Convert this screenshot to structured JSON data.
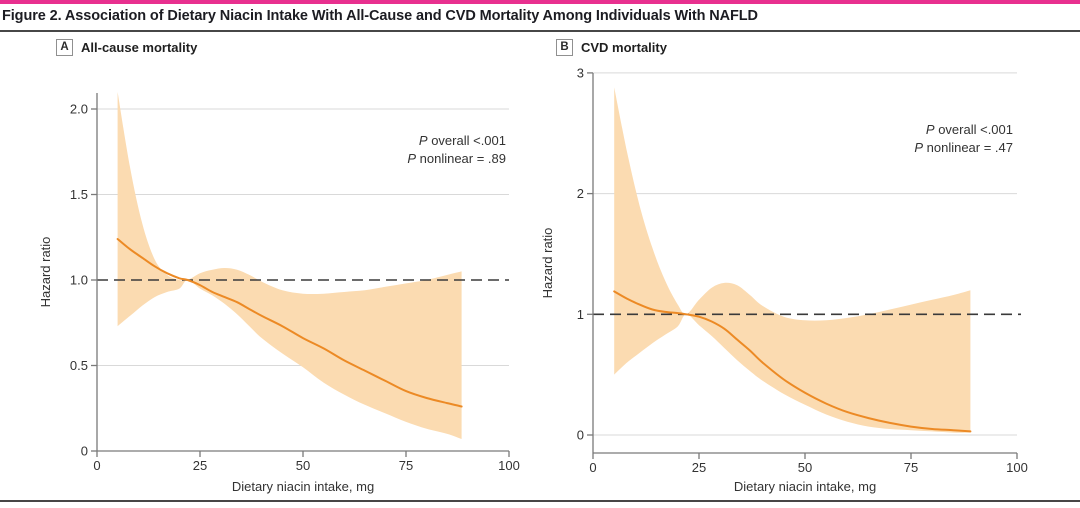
{
  "figure": {
    "title": "Figure 2. Association of Dietary Niacin Intake With All-Cause and CVD Mortality Among Individuals With NAFLD",
    "accent_color": "#E8308F"
  },
  "panels": [
    {
      "badge": "A",
      "label": "All-cause mortality"
    },
    {
      "badge": "B",
      "label": "CVD mortality"
    }
  ],
  "chart_data": [
    {
      "type": "line",
      "panel": "A",
      "title": "All-cause mortality",
      "xlabel": "Dietary niacin intake, mg",
      "ylabel": "Hazard ratio",
      "xlim": [
        0,
        100
      ],
      "ylim": [
        0,
        2.0
      ],
      "xticks": [
        0,
        25,
        50,
        75,
        100
      ],
      "yticks": [
        {
          "v": 0,
          "label": "0"
        },
        {
          "v": 0.5,
          "label": "0.5"
        },
        {
          "v": 1,
          "label": "1.0"
        },
        {
          "v": 1.5,
          "label": "1.5"
        },
        {
          "v": 2,
          "label": "2.0"
        }
      ],
      "gridlines": [
        0.5,
        1.5,
        2.0
      ],
      "reference_line": 1.0,
      "annotations": [
        {
          "italic": "P",
          "text": " overall <.001"
        },
        {
          "italic": "P",
          "text": " nonlinear = .89"
        }
      ],
      "series": {
        "x": [
          5,
          8,
          11,
          14,
          17,
          20,
          22,
          25,
          28,
          31,
          34,
          37,
          40,
          45,
          50,
          55,
          60,
          65,
          70,
          75,
          80,
          85,
          88.5
        ],
        "hazard_ratio": [
          1.24,
          1.18,
          1.13,
          1.08,
          1.04,
          1.01,
          1.0,
          0.97,
          0.93,
          0.9,
          0.87,
          0.83,
          0.79,
          0.73,
          0.66,
          0.6,
          0.53,
          0.47,
          0.41,
          0.35,
          0.31,
          0.28,
          0.26
        ],
        "ci_lower": [
          0.73,
          0.79,
          0.85,
          0.9,
          0.93,
          0.95,
          1.0,
          0.95,
          0.91,
          0.86,
          0.8,
          0.73,
          0.66,
          0.57,
          0.49,
          0.4,
          0.33,
          0.27,
          0.22,
          0.17,
          0.13,
          0.1,
          0.07
        ],
        "ci_upper": [
          2.1,
          1.66,
          1.33,
          1.12,
          1.03,
          1.0,
          1.0,
          1.04,
          1.06,
          1.07,
          1.06,
          1.03,
          0.99,
          0.94,
          0.92,
          0.92,
          0.93,
          0.94,
          0.96,
          0.98,
          1.0,
          1.03,
          1.05
        ]
      },
      "colors": {
        "line": "#EC8A25",
        "band": "#FBDBB1",
        "reference": "#3A3A3A",
        "grid": "#D9D9D9",
        "axis": "#7A7A7A",
        "text": "#333333"
      }
    },
    {
      "type": "line",
      "panel": "B",
      "title": "CVD mortality",
      "xlabel": "Dietary niacin intake, mg",
      "ylabel": "Hazard ratio",
      "xlim": [
        0,
        100
      ],
      "ylim": [
        0,
        3
      ],
      "xticks": [
        0,
        25,
        50,
        75,
        100
      ],
      "yticks": [
        {
          "v": 0,
          "label": "0"
        },
        {
          "v": 1,
          "label": "1"
        },
        {
          "v": 2,
          "label": "2"
        },
        {
          "v": 3,
          "label": "3"
        }
      ],
      "gridlines": [
        0,
        2,
        3
      ],
      "reference_line": 1.0,
      "annotations": [
        {
          "italic": "P",
          "text": " overall <.001"
        },
        {
          "italic": "P",
          "text": " nonlinear = .47"
        }
      ],
      "series": {
        "x": [
          5,
          8,
          11,
          14,
          17,
          20,
          22,
          25,
          28,
          31,
          34,
          37,
          40,
          45,
          50,
          55,
          60,
          65,
          70,
          75,
          80,
          85,
          89
        ],
        "hazard_ratio": [
          1.19,
          1.13,
          1.08,
          1.04,
          1.02,
          1.01,
          1.0,
          0.98,
          0.94,
          0.88,
          0.79,
          0.7,
          0.6,
          0.46,
          0.35,
          0.26,
          0.19,
          0.14,
          0.1,
          0.07,
          0.05,
          0.04,
          0.03
        ],
        "ci_lower": [
          0.5,
          0.6,
          0.68,
          0.76,
          0.83,
          0.9,
          1.0,
          0.91,
          0.82,
          0.72,
          0.62,
          0.53,
          0.45,
          0.34,
          0.25,
          0.17,
          0.11,
          0.07,
          0.05,
          0.04,
          0.03,
          0.02,
          0.02
        ],
        "ci_upper": [
          2.88,
          2.35,
          1.9,
          1.55,
          1.28,
          1.08,
          1.0,
          1.12,
          1.22,
          1.26,
          1.24,
          1.16,
          1.07,
          0.98,
          0.95,
          0.95,
          0.97,
          1.0,
          1.04,
          1.08,
          1.12,
          1.16,
          1.2
        ]
      },
      "colors": {
        "line": "#EC8A25",
        "band": "#FBDBB1",
        "reference": "#3A3A3A",
        "grid": "#D9D9D9",
        "axis": "#7A7A7A",
        "text": "#333333"
      }
    }
  ]
}
